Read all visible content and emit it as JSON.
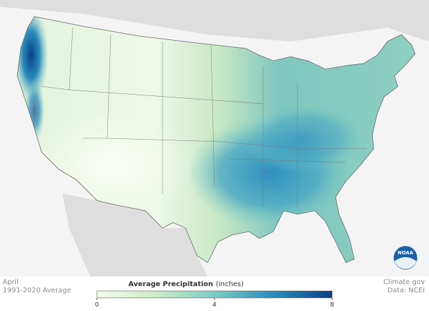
{
  "caption": {
    "month": "April",
    "period": "1991-2020 Average"
  },
  "credit": {
    "source": "Climate.gov",
    "data": "Data: NCEI"
  },
  "logo": "NOAA",
  "legend": {
    "title": "Average Precipitation",
    "unit": "(inches)",
    "range": [
      0,
      8
    ],
    "ticks": [
      0,
      4,
      8
    ],
    "colors": [
      "#f7fcf0",
      "#ccebc5",
      "#7bccc4",
      "#2b8cbe",
      "#084081"
    ]
  }
}
